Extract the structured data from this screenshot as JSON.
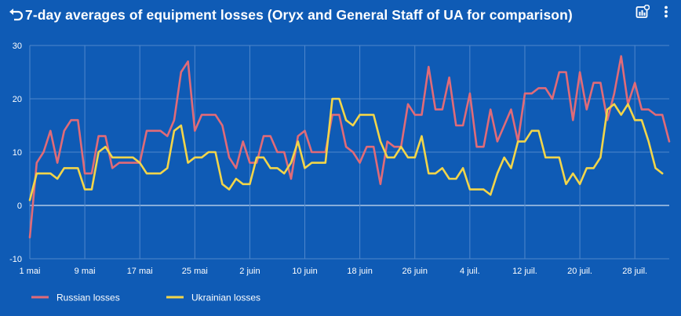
{
  "header": {
    "title": "7-day averages of equipment losses (Oryx and General Staff of UA for comparison)",
    "back_icon": "undo-arrow-icon",
    "actions": [
      "chart-options-icon",
      "more-vert-icon"
    ]
  },
  "colors": {
    "background": "#0f5bb5",
    "russian": "#e06b78",
    "ukrainian": "#f2d54a",
    "grid": "#4f87cc",
    "zero_line": "#ffffff"
  },
  "chart_data": {
    "type": "line",
    "title": "7-day averages of equipment losses (Oryx and General Staff of UA for comparison)",
    "ylim": [
      -10,
      30
    ],
    "yticks": [
      -10,
      0,
      10,
      20,
      30
    ],
    "grid": true,
    "legend_position": "bottom-left",
    "x_range": [
      "1 mai",
      "3 août"
    ],
    "xtick_labels": [
      "1 mai",
      "9 mai",
      "17 mai",
      "25 mai",
      "2 juin",
      "10 juin",
      "18 juin",
      "26 juin",
      "4 juil.",
      "12 juil.",
      "20 juil.",
      "28 juil."
    ],
    "series": [
      {
        "name": "Russian losses",
        "color": "#e06b78",
        "values": [
          -6,
          8,
          10,
          14,
          8,
          14,
          16,
          16,
          6,
          6,
          13,
          13,
          7,
          8,
          8,
          8,
          8,
          14,
          14,
          14,
          13,
          16,
          25,
          27,
          14,
          17,
          17,
          17,
          15,
          9,
          7,
          12,
          8,
          8,
          13,
          13,
          10,
          10,
          5,
          13,
          14,
          10,
          10,
          10,
          17,
          17,
          11,
          10,
          8,
          11,
          11,
          4,
          12,
          11,
          11,
          19,
          17,
          17,
          26,
          18,
          18,
          24,
          15,
          15,
          21,
          11,
          11,
          18,
          12,
          15,
          18,
          12,
          21,
          21,
          22,
          22,
          20,
          25,
          25,
          16,
          25,
          18,
          23,
          23,
          16,
          21,
          28,
          19,
          23,
          18,
          18,
          17,
          17,
          12
        ]
      },
      {
        "name": "Ukrainian losses",
        "color": "#f2d54a",
        "values": [
          1,
          6,
          6,
          6,
          5,
          7,
          7,
          7,
          3,
          3,
          10,
          11,
          9,
          9,
          9,
          9,
          8,
          6,
          6,
          6,
          7,
          14,
          15,
          8,
          9,
          9,
          10,
          10,
          4,
          3,
          5,
          4,
          4,
          9,
          9,
          7,
          7,
          6,
          8,
          12,
          7,
          8,
          8,
          8,
          20,
          20,
          16,
          15,
          17,
          17,
          17,
          12,
          9,
          9,
          11,
          9,
          9,
          13,
          6,
          6,
          7,
          5,
          5,
          7,
          3,
          3,
          3,
          2,
          6,
          9,
          7,
          12,
          12,
          14,
          14,
          9,
          9,
          9,
          4,
          6,
          4,
          7,
          7,
          9,
          18,
          19,
          17,
          19,
          16,
          16,
          12,
          7,
          6
        ]
      }
    ]
  }
}
